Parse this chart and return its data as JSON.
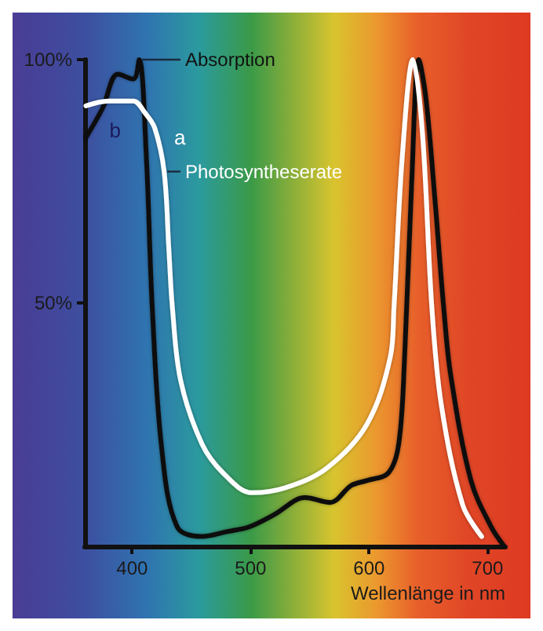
{
  "chart_data": {
    "type": "line",
    "xlabel": "Wellenlänge in nm",
    "xlim": [
      360,
      715
    ],
    "ylim": [
      0,
      100
    ],
    "xticks": [
      400,
      500,
      600,
      700
    ],
    "yticks": [
      {
        "value": 50,
        "label": "50%"
      },
      {
        "value": 100,
        "label": "100%"
      }
    ],
    "grid": false,
    "legend": false,
    "marker": "none",
    "line_style": "solid",
    "series": [
      {
        "name": "Absorption",
        "color": "#111111",
        "x": [
          361,
          375,
          388,
          401,
          406,
          412,
          417,
          425,
          438,
          459,
          480,
          499,
          520,
          546,
          567,
          585,
          598,
          616,
          625,
          630,
          636,
          642,
          648,
          656,
          663,
          669,
          686,
          703,
          714
        ],
        "values": [
          84,
          90,
          97,
          96,
          100,
          80,
          49,
          20,
          4,
          2,
          3,
          4,
          6.5,
          10,
          9,
          12.5,
          13.5,
          15,
          21,
          39,
          75,
          100,
          92,
          70,
          49,
          35,
          13.5,
          4,
          0
        ]
      },
      {
        "name": "Photosyntheserate",
        "color": "#ffffff",
        "x": [
          361,
          380,
          401,
          411,
          419,
          427,
          431,
          434,
          441,
          459,
          477,
          501,
          529,
          564,
          598,
          618,
          621,
          628,
          637,
          645,
          653,
          661,
          679,
          695
        ],
        "values": [
          90.5,
          91.5,
          91.5,
          89,
          86,
          77,
          61,
          49,
          34,
          21,
          15,
          11,
          12,
          16,
          25,
          39,
          49,
          80,
          100,
          85,
          49,
          29,
          8.5,
          2
        ]
      }
    ],
    "annotations": [
      "b",
      "a"
    ]
  }
}
